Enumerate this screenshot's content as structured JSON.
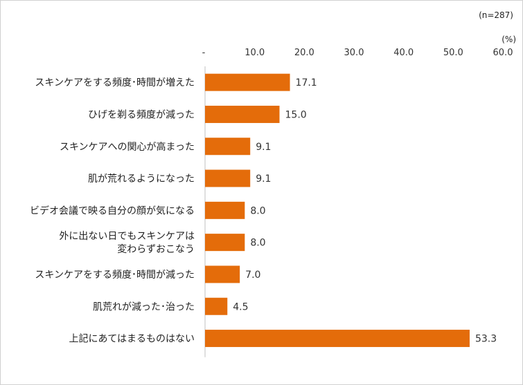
{
  "notes": {
    "sample": "(n=287)",
    "unit": "(%)"
  },
  "chart_data": {
    "type": "bar",
    "orientation": "horizontal",
    "categories": [
      [
        "スキンケアをする頻度･時間が増えた"
      ],
      [
        "ひげを剃る頻度が減った"
      ],
      [
        "スキンケアへの関心が高まった"
      ],
      [
        "肌が荒れるようになった"
      ],
      [
        "ビデオ会議で映る自分の顔が気になる"
      ],
      [
        "外に出ない日でもスキンケアは",
        "変わらずおこなう"
      ],
      [
        "スキンケアをする頻度･時間が減った"
      ],
      [
        "肌荒れが減った･治った"
      ],
      [
        "上記にあてはまるものはない"
      ]
    ],
    "values": [
      17.1,
      15.0,
      9.1,
      9.1,
      8.0,
      8.0,
      7.0,
      4.5,
      53.3
    ],
    "value_labels": [
      "17.1",
      "15.0",
      "9.1",
      "9.1",
      "8.0",
      "8.0",
      "7.0",
      "4.5",
      "53.3"
    ],
    "xlim": [
      0,
      60
    ],
    "ticks": [
      0,
      10,
      20,
      30,
      40,
      50,
      60
    ],
    "tick_labels": [
      "-",
      "10.0",
      "20.0",
      "30.0",
      "40.0",
      "50.0",
      "60.0"
    ],
    "tick_position": "top",
    "bar_color": "#E46C0A",
    "grid": false,
    "legend": "none"
  }
}
